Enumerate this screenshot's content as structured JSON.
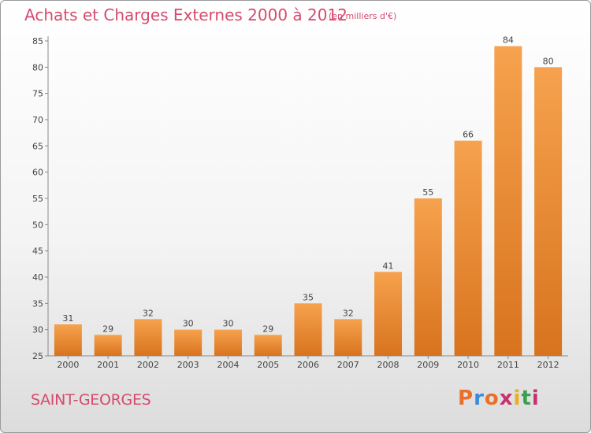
{
  "header": {
    "title": "Achats et Charges Externes 2000 à 2012",
    "unit": "(en milliers d'€)"
  },
  "footer": {
    "commune": "SAINT-GEORGES",
    "logo_text": "Proxiti"
  },
  "colors": {
    "bar_light": "#f6a24e",
    "bar_dark": "#d8731e",
    "text_accent": "#d64a6e",
    "logo_letters": [
      "#e8702a",
      "#3a8ad8",
      "#e8702a",
      "#c83070",
      "#e8b020",
      "#3aa050",
      "#c83070"
    ]
  },
  "chart_data": {
    "type": "bar",
    "title": "Achats et Charges Externes 2000 à 2012",
    "subtitle": "(en milliers d'€)",
    "xlabel": "",
    "ylabel": "",
    "categories": [
      "2000",
      "2001",
      "2002",
      "2003",
      "2004",
      "2005",
      "2006",
      "2007",
      "2008",
      "2009",
      "2010",
      "2011",
      "2012"
    ],
    "values": [
      31,
      29,
      32,
      30,
      30,
      29,
      35,
      32,
      41,
      55,
      66,
      84,
      80
    ],
    "ylim": [
      25,
      85
    ],
    "yticks": [
      25,
      30,
      35,
      40,
      45,
      50,
      55,
      60,
      65,
      70,
      75,
      80,
      85
    ],
    "grid": false,
    "legend": "none"
  }
}
